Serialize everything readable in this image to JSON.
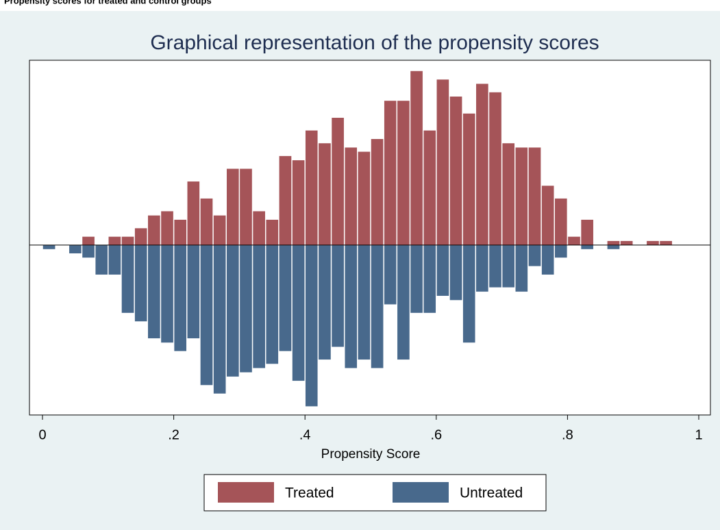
{
  "caption": "Propensity scores for treated and control groups",
  "chart_data": {
    "type": "histogram",
    "title": "Graphical representation of the propensity scores",
    "x_label": "Propensity Score",
    "bins": [
      0,
      0.02,
      0.04,
      0.06,
      0.08,
      0.1,
      0.12,
      0.14,
      0.16,
      0.18,
      0.2,
      0.22,
      0.24,
      0.26,
      0.28,
      0.3,
      0.32,
      0.34,
      0.36,
      0.38,
      0.4,
      0.42,
      0.44,
      0.46,
      0.48,
      0.5,
      0.52,
      0.54,
      0.56,
      0.58,
      0.6,
      0.62,
      0.64,
      0.66,
      0.68,
      0.7,
      0.72,
      0.74,
      0.76,
      0.78,
      0.8,
      0.82,
      0.84,
      0.86,
      0.88,
      0.9,
      0.92,
      0.94,
      0.96,
      0.98,
      1
    ],
    "series": [
      {
        "name": "Untreated",
        "color": "#48698c",
        "direction": "down",
        "values": [
          1,
          0,
          2,
          3,
          7,
          7,
          16,
          18,
          22,
          23,
          25,
          22,
          33,
          35,
          31,
          30,
          29,
          28,
          25,
          32,
          38,
          27,
          24,
          29,
          27,
          29,
          14,
          27,
          16,
          16,
          12,
          13,
          23,
          11,
          10,
          10,
          11,
          5,
          7,
          3,
          0,
          1,
          0,
          1,
          0,
          0,
          0,
          0,
          0,
          0
        ]
      },
      {
        "name": "Treated",
        "color": "#a55458",
        "direction": "up",
        "values": [
          0,
          0,
          0,
          2,
          0,
          2,
          2,
          4,
          7,
          8,
          6,
          15,
          11,
          7,
          18,
          18,
          8,
          6,
          21,
          20,
          27,
          24,
          30,
          23,
          22,
          25,
          34,
          34,
          41,
          27,
          39,
          35,
          31,
          38,
          36,
          24,
          23,
          23,
          14,
          11,
          2,
          6,
          0,
          1,
          1,
          0,
          1,
          1,
          0,
          0
        ]
      }
    ],
    "xlim": [
      0,
      1
    ],
    "xticks": [
      0,
      {
        "value": 0.2,
        "label": ".2"
      },
      {
        "value": 0.4,
        "label": ".4"
      },
      {
        "value": 0.6,
        "label": ".6"
      },
      {
        "value": 0.8,
        "label": ".8"
      },
      1
    ],
    "ylim": [
      -40,
      43.5
    ],
    "legend": "bottom"
  }
}
